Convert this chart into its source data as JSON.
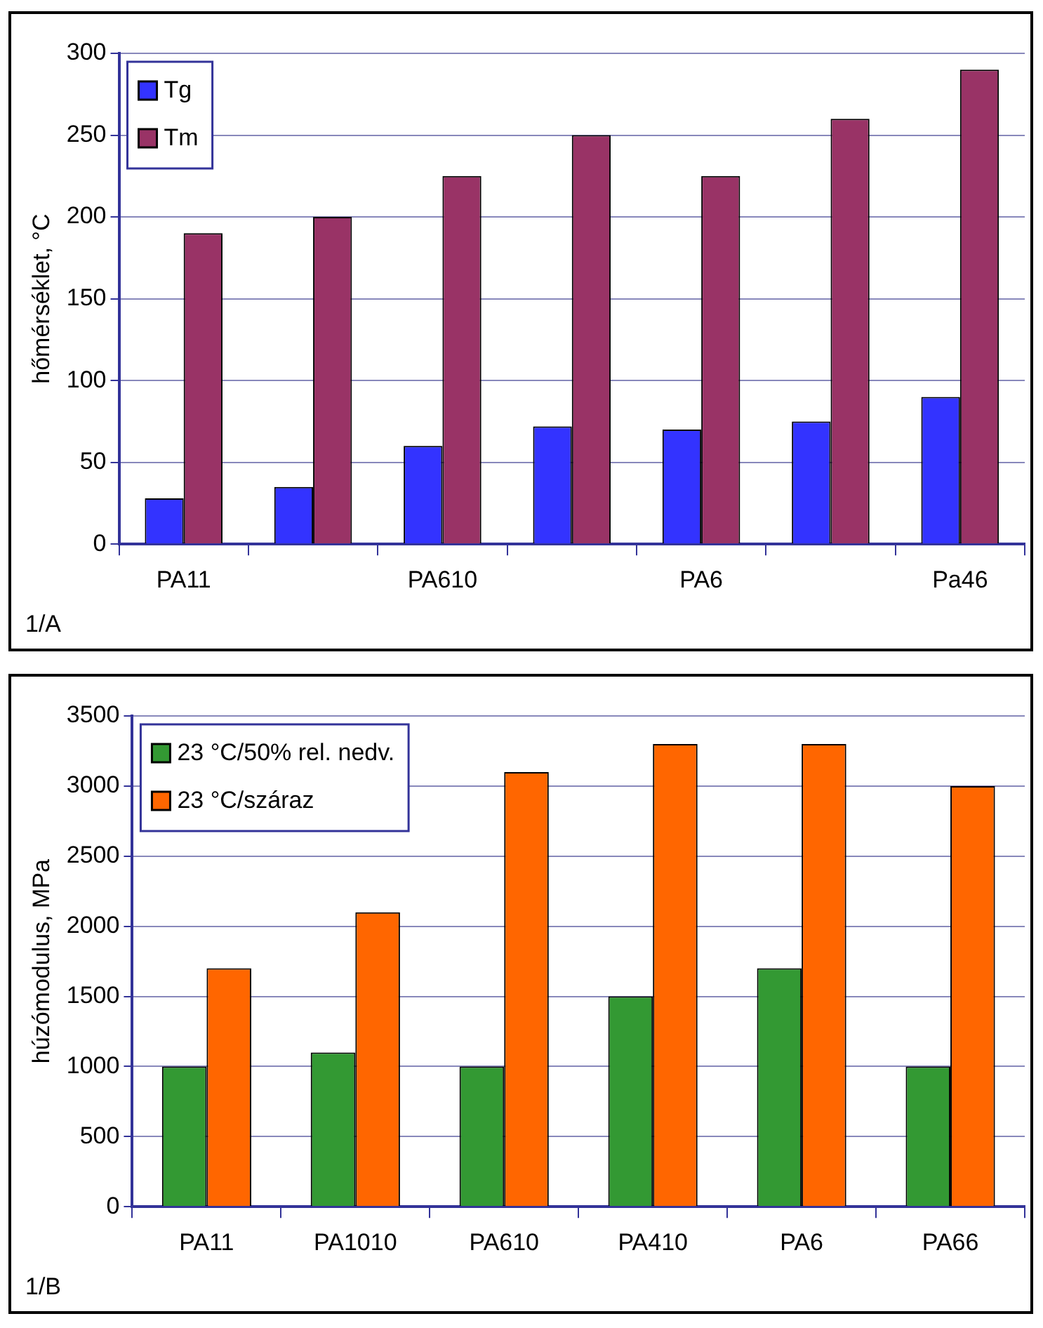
{
  "chart_data": [
    {
      "type": "bar",
      "ylabel": "hőmérséklet, °C",
      "categories": [
        "PA11",
        null,
        "PA610",
        null,
        "PA6",
        null,
        "Pa46"
      ],
      "series": [
        {
          "name": "Tg",
          "color": "#3333ff",
          "values": [
            28,
            35,
            60,
            72,
            70,
            75,
            90
          ]
        },
        {
          "name": "Tm",
          "color": "#993366",
          "values": [
            190,
            200,
            225,
            250,
            225,
            260,
            290
          ]
        }
      ],
      "ylim": [
        0,
        300
      ],
      "yticks": [
        0,
        50,
        100,
        150,
        200,
        250,
        300
      ],
      "grid": "y",
      "legend": "top left",
      "annotations": [
        "1/A"
      ]
    },
    {
      "type": "bar",
      "ylabel": "húzómodulus, MPa",
      "categories": [
        "PA11",
        "PA1010",
        "PA610",
        "PA410",
        "PA6",
        "PA66"
      ],
      "series": [
        {
          "name": "23 °C/50% rel. nedv.",
          "color": "#339933",
          "values": [
            1000,
            1100,
            1000,
            1500,
            1700,
            1000
          ]
        },
        {
          "name": "23 °C/száraz",
          "color": "#ff6600",
          "values": [
            1700,
            2100,
            3100,
            3300,
            3300,
            3000
          ]
        }
      ],
      "ylim": [
        0,
        3500
      ],
      "yticks": [
        0,
        500,
        1000,
        1500,
        2000,
        2500,
        3000,
        3500
      ],
      "grid": "y",
      "legend": "top left",
      "annotations": [
        "1/B"
      ]
    }
  ]
}
